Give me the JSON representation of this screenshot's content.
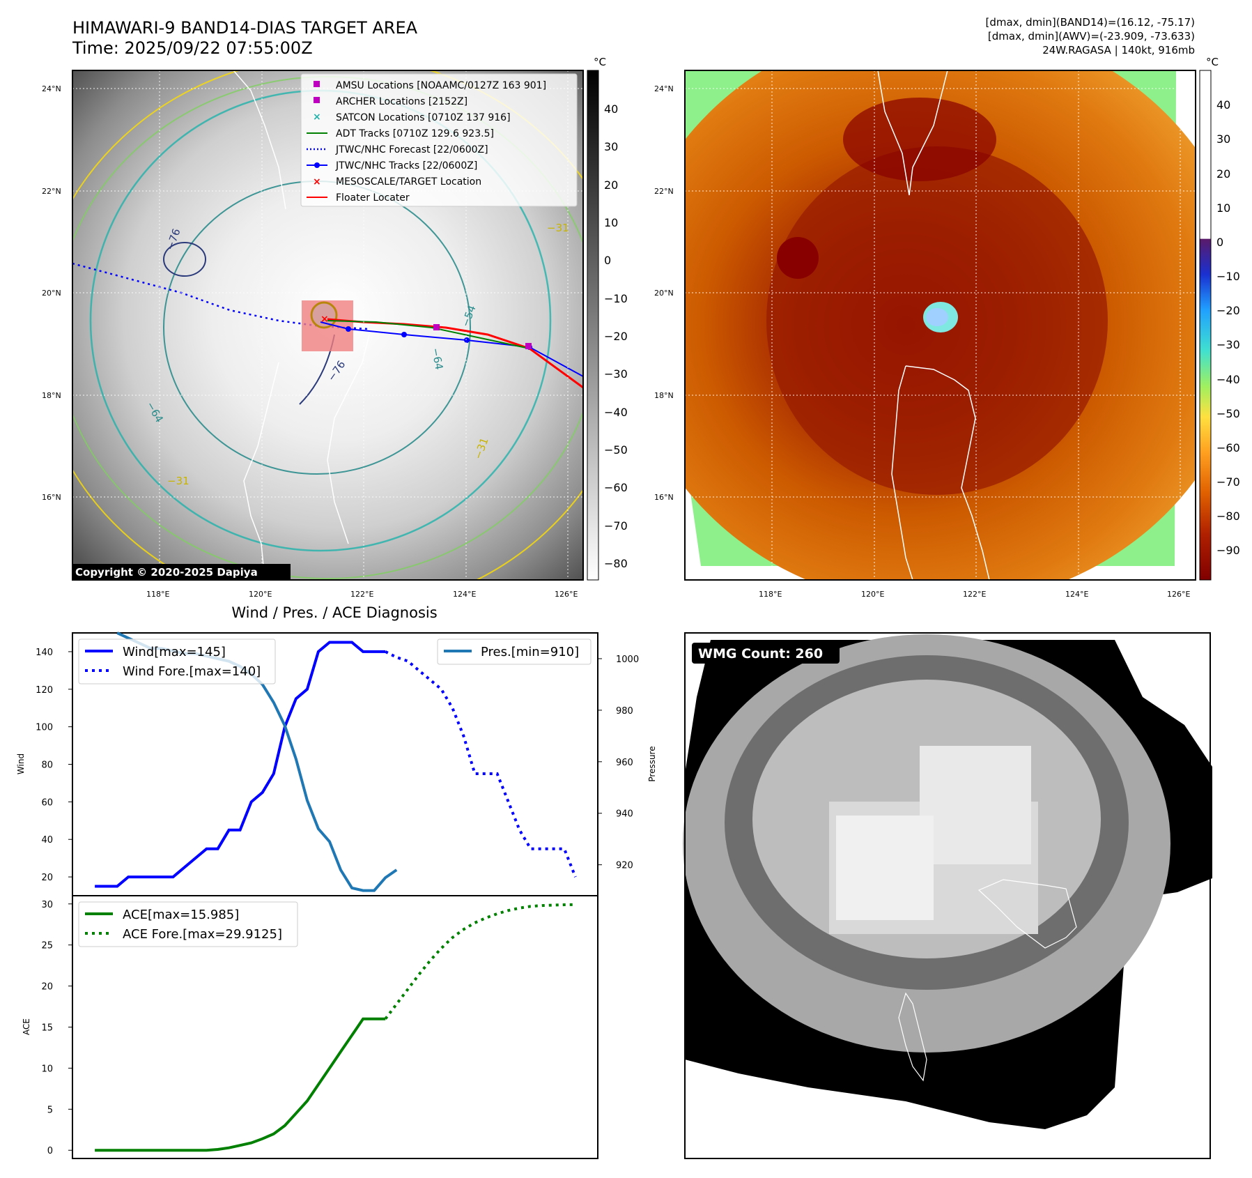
{
  "header": {
    "title_line1": "HIMAWARI-9 BAND14-DIAS TARGET AREA",
    "title_line2": "Time: 2025/09/22 07:55:00Z",
    "info_line1": "[dmax, dmin](BAND14)=(16.12, -75.17)",
    "info_line2": "[dmax, dmin](AWV)=(-23.909, -73.633)",
    "info_line3": "24W.RAGASA | 140kt, 916mb"
  },
  "map_axes": {
    "lat_ticks": [
      "24°N",
      "22°N",
      "20°N",
      "18°N",
      "16°N"
    ],
    "lon_ticks": [
      "118°E",
      "120°E",
      "122°E",
      "124°E",
      "126°E"
    ]
  },
  "ir_panel": {
    "copyright": "Copyright © 2020-2025 Dapiya",
    "colorbar_unit": "°C",
    "colorbar_ticks": [
      "40",
      "30",
      "20",
      "10",
      "0",
      "−10",
      "−20",
      "−30",
      "−40",
      "−50",
      "−60",
      "−70",
      "−80"
    ],
    "contour_labels": [
      "−76",
      "−64",
      "−54",
      "−31",
      "−76",
      "−64",
      "−31",
      "−31"
    ],
    "legend": [
      {
        "label": "AMSU Locations [NOAAMC/0127Z 163 901]",
        "color": "#c000c0",
        "marker": "square"
      },
      {
        "label": "ARCHER Locations [2152Z]",
        "color": "#c000c0",
        "marker": "square"
      },
      {
        "label": "SATCON Locations [0710Z 137 916]",
        "color": "#20b2aa",
        "marker": "x"
      },
      {
        "label": "ADT Tracks [0710Z 129.6 923.5]",
        "color": "#008000",
        "marker": "line"
      },
      {
        "label": "JTWC/NHC Forecast [22/0600Z]",
        "color": "#0000ff",
        "marker": "dotted"
      },
      {
        "label": "JTWC/NHC Tracks [22/0600Z]",
        "color": "#0000ff",
        "marker": "line-dot"
      },
      {
        "label": "MESOSCALE/TARGET Location",
        "color": "#ff0000",
        "marker": "x"
      },
      {
        "label": "Floater Locater",
        "color": "#ff0000",
        "marker": "line"
      }
    ]
  },
  "awv_panel": {
    "colorbar_unit": "°C",
    "colorbar_ticks": [
      "40",
      "30",
      "20",
      "10",
      "0",
      "−10",
      "−20",
      "−30",
      "−40",
      "−50",
      "−60",
      "−70",
      "−80",
      "−90"
    ]
  },
  "diag_panel": {
    "title": "Wind / Pres. / ACE Diagnosis",
    "wind_ylabel": "Wind",
    "pres_ylabel": "Pressure",
    "ace_ylabel": "ACE",
    "legend_wind": "Wind[max=145]",
    "legend_wind_fore": "Wind Fore.[max=140]",
    "legend_pres": "Pres.[min=910]",
    "legend_ace": "ACE[max=15.985]",
    "legend_ace_fore": "ACE Fore.[max=29.9125]"
  },
  "wmg_panel": {
    "label": "WMG Count: 260"
  },
  "colors": {
    "wind": "#0000ff",
    "pressure": "#1f77b4",
    "ace": "#008000"
  },
  "chart_data": [
    {
      "type": "line",
      "title": "Wind / Pres. / ACE Diagnosis",
      "ylabel": "Wind",
      "ylim": [
        10,
        150
      ],
      "yticks": [
        20,
        40,
        60,
        80,
        100,
        120,
        140
      ],
      "series": [
        {
          "name": "Wind[max=145]",
          "style": "solid",
          "x": [
            0,
            1,
            2,
            3,
            4,
            5,
            6,
            7,
            8,
            9,
            10,
            11,
            12,
            13,
            14,
            15,
            16,
            17,
            18,
            19,
            20,
            21,
            22,
            23,
            24,
            25,
            26
          ],
          "values": [
            15,
            15,
            15,
            20,
            20,
            20,
            20,
            20,
            25,
            30,
            35,
            35,
            45,
            45,
            60,
            65,
            75,
            100,
            115,
            120,
            140,
            145,
            145,
            145,
            140,
            140,
            140
          ]
        },
        {
          "name": "Wind Fore.[max=140]",
          "style": "dotted",
          "x": [
            26,
            27,
            28,
            29,
            30,
            31,
            32,
            33,
            34,
            35,
            36,
            37,
            38,
            39,
            40,
            41,
            42,
            43
          ],
          "values": [
            140,
            137,
            135,
            130,
            125,
            120,
            110,
            95,
            75,
            75,
            75,
            60,
            45,
            35,
            35,
            35,
            35,
            20
          ]
        }
      ]
    },
    {
      "type": "line",
      "ylabel": "Pressure",
      "ylim": [
        908,
        1010
      ],
      "yticks": [
        920,
        940,
        960,
        980,
        1000
      ],
      "series": [
        {
          "name": "Pres.[min=910]",
          "style": "solid",
          "x": [
            2,
            3,
            4,
            5,
            6,
            7,
            8,
            9,
            10,
            11,
            12,
            13,
            14,
            15,
            16,
            17,
            18,
            19,
            20,
            21,
            22,
            23,
            24,
            25,
            26,
            27
          ],
          "values": [
            1010,
            1008,
            1006,
            1004,
            1004,
            1003,
            1002,
            1002,
            1001,
            1000,
            999,
            997,
            994,
            990,
            983,
            974,
            961,
            945,
            934,
            929,
            918,
            911,
            910,
            910,
            915,
            918
          ]
        }
      ]
    },
    {
      "type": "line",
      "ylabel": "ACE",
      "ylim": [
        -1,
        31
      ],
      "yticks": [
        0,
        5,
        10,
        15,
        20,
        25,
        30
      ],
      "series": [
        {
          "name": "ACE[max=15.985]",
          "style": "solid",
          "x": [
            0,
            1,
            2,
            3,
            4,
            5,
            6,
            7,
            8,
            9,
            10,
            11,
            12,
            13,
            14,
            15,
            16,
            17,
            18,
            19,
            20,
            21,
            22,
            23,
            24,
            25,
            26
          ],
          "values": [
            0,
            0,
            0,
            0,
            0,
            0,
            0,
            0,
            0,
            0,
            0,
            0.1,
            0.3,
            0.6,
            0.9,
            1.4,
            2.0,
            3.0,
            4.5,
            6.0,
            8.0,
            10.0,
            12.0,
            14.0,
            16.0,
            16.0,
            16.0
          ]
        },
        {
          "name": "ACE Fore.[max=29.9125]",
          "style": "dotted",
          "x": [
            26,
            27,
            28,
            29,
            30,
            31,
            32,
            33,
            34,
            35,
            36,
            37,
            38,
            39,
            40,
            41,
            42,
            43
          ],
          "values": [
            16.0,
            17.8,
            19.6,
            21.4,
            23.1,
            24.6,
            25.9,
            26.9,
            27.7,
            28.3,
            28.8,
            29.2,
            29.5,
            29.7,
            29.8,
            29.85,
            29.9,
            29.91
          ]
        }
      ]
    }
  ]
}
